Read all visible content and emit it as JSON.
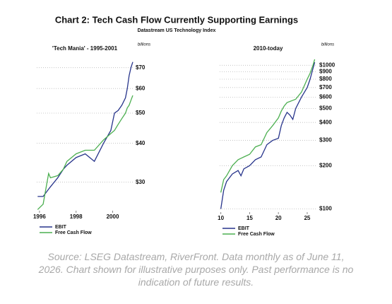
{
  "title": "Chart 2: Tech Cash Flow Currently Supporting Earnings",
  "subtitle": "Datastream US Technology Index",
  "source": "Source: LSEG Datastream, RiverFront. Data monthly as of June 11, 2026. Chart shown for illustrative purposes only. Past performance is no indication of future results.",
  "chart_data": [
    {
      "type": "line",
      "title": "'Tech Mania' - 1995-2001",
      "y_unit": "billions",
      "log_y": true,
      "grid": true,
      "xlim": [
        1995.85,
        2001.1
      ],
      "xticks": [
        1996,
        1998,
        2000
      ],
      "ylim": [
        24.3,
        78
      ],
      "yticks": [
        {
          "value": 30,
          "label": "$30"
        },
        {
          "value": 40,
          "label": "$40"
        },
        {
          "value": 50,
          "label": "$50"
        },
        {
          "value": 60,
          "label": "$60"
        },
        {
          "value": 70,
          "label": "$70"
        }
      ],
      "x": [
        1995.9,
        1996.2,
        1996.5,
        1996.6,
        1997.0,
        1997.3,
        1997.5,
        1998.0,
        1998.5,
        1999.0,
        1999.5,
        1999.9,
        2000.1,
        2000.3,
        2000.5,
        2000.7,
        2000.8,
        2000.9,
        2001.0,
        2001.1
      ],
      "series": [
        {
          "name": "EBIT",
          "color": "#27348b",
          "values": [
            27,
            27,
            28.5,
            29,
            31,
            33,
            34,
            36,
            37,
            35,
            40,
            44,
            50,
            51,
            53,
            56,
            60,
            66,
            70,
            73
          ]
        },
        {
          "name": "Free Cash Flow",
          "color": "#4caf50",
          "values": [
            24.5,
            25.5,
            32,
            31,
            31.5,
            33,
            35,
            37,
            38,
            38,
            41,
            43,
            44,
            46,
            48,
            50,
            52,
            53,
            55,
            57
          ]
        }
      ]
    },
    {
      "type": "line",
      "title": "2010-today",
      "y_unit": "billions",
      "log_y": true,
      "grid": true,
      "xlim": [
        9.8,
        26.6
      ],
      "xticks": [
        10,
        15,
        20,
        25
      ],
      "ylim": [
        95,
        1150
      ],
      "yticks": [
        {
          "value": 100,
          "label": "$100"
        },
        {
          "value": 200,
          "label": "$200"
        },
        {
          "value": 300,
          "label": "$300"
        },
        {
          "value": 400,
          "label": "$400"
        },
        {
          "value": 500,
          "label": "$500"
        },
        {
          "value": 600,
          "label": "$600"
        },
        {
          "value": 700,
          "label": "$700"
        },
        {
          "value": 800,
          "label": "$800"
        },
        {
          "value": 900,
          "label": "$900"
        },
        {
          "value": 1000,
          "label": "$1000"
        }
      ],
      "x": [
        10.0,
        10.5,
        11,
        12,
        13,
        13.5,
        14,
        15,
        16,
        17,
        18,
        19,
        20,
        20.5,
        21,
        21.5,
        22,
        22.5,
        23,
        24,
        25,
        25.5,
        26,
        26.3
      ],
      "series": [
        {
          "name": "EBIT",
          "color": "#27348b",
          "values": [
            100,
            135,
            155,
            175,
            185,
            170,
            190,
            200,
            220,
            230,
            280,
            300,
            310,
            380,
            430,
            470,
            450,
            420,
            500,
            600,
            700,
            800,
            950,
            1050
          ]
        },
        {
          "name": "Free Cash Flow",
          "color": "#4caf50",
          "values": [
            130,
            160,
            170,
            200,
            220,
            225,
            230,
            240,
            270,
            280,
            340,
            380,
            430,
            480,
            520,
            550,
            560,
            570,
            580,
            650,
            800,
            880,
            1000,
            1100
          ]
        }
      ]
    }
  ]
}
